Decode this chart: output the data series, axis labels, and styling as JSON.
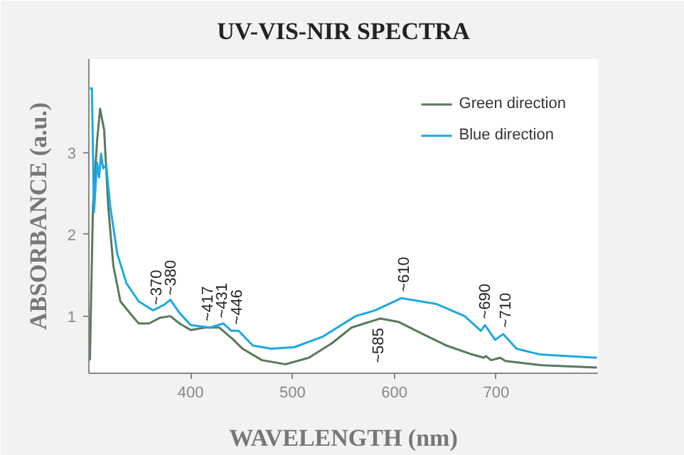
{
  "chart_data": {
    "type": "line",
    "title": "UV-VIS-NIR SPECTRA",
    "xlabel": "WAVELENGTH (nm)",
    "ylabel": "ABSORBANCE (a.u.)",
    "xlim": [
      300,
      800
    ],
    "ylim": [
      0.3,
      4.15
    ],
    "xticks": [
      400,
      500,
      600,
      700
    ],
    "yticks": [
      1,
      2,
      3
    ],
    "grid": false,
    "legend": "top right",
    "series": [
      {
        "name": "Green direction",
        "color": "#587a5a",
        "x": [
          301,
          304,
          308,
          311,
          315,
          319,
          324,
          331,
          340,
          349,
          359,
          370,
          380,
          389,
          400,
          414,
          428,
          442,
          451,
          470,
          493,
          516,
          539,
          558,
          586,
          604,
          628,
          651,
          674,
          688,
          690,
          695,
          704,
          709,
          743,
          799
        ],
        "values": [
          0.46,
          2.34,
          3.14,
          3.54,
          3.28,
          2.34,
          1.62,
          1.18,
          1.04,
          0.91,
          0.91,
          0.98,
          1.0,
          0.91,
          0.83,
          0.86,
          0.86,
          0.71,
          0.6,
          0.46,
          0.41,
          0.49,
          0.67,
          0.86,
          0.97,
          0.93,
          0.78,
          0.64,
          0.54,
          0.49,
          0.51,
          0.46,
          0.49,
          0.45,
          0.4,
          0.37
        ]
      },
      {
        "name": "Blue direction",
        "color": "#1ca8e4",
        "x": [
          301,
          303,
          305,
          308,
          310,
          312,
          314,
          317,
          321,
          328,
          337,
          349,
          363,
          374,
          380,
          389,
          400,
          419,
          432,
          440,
          447,
          461,
          479,
          502,
          530,
          562,
          581,
          607,
          641,
          669,
          685,
          689,
          699,
          707,
          720,
          743,
          799
        ],
        "values": [
          3.79,
          3.79,
          2.27,
          2.88,
          2.7,
          2.99,
          2.81,
          2.85,
          2.34,
          1.76,
          1.4,
          1.18,
          1.07,
          1.14,
          1.2,
          1.04,
          0.89,
          0.86,
          0.91,
          0.82,
          0.82,
          0.64,
          0.6,
          0.62,
          0.75,
          1.0,
          1.07,
          1.22,
          1.15,
          1.0,
          0.82,
          0.89,
          0.71,
          0.78,
          0.6,
          0.53,
          0.49
        ]
      }
    ],
    "annotations": [
      {
        "text": "~370",
        "x": 367,
        "y": 1.1
      },
      {
        "text": "~380",
        "x": 381,
        "y": 1.22
      },
      {
        "text": "~417",
        "x": 417,
        "y": 0.9
      },
      {
        "text": "~431",
        "x": 431,
        "y": 0.94
      },
      {
        "text": "~446",
        "x": 446,
        "y": 0.86
      },
      {
        "text": "~585",
        "x": 585,
        "y": 0.96
      },
      {
        "text": "~610",
        "x": 610,
        "y": 1.26
      },
      {
        "text": "~690",
        "x": 690,
        "y": 0.93
      },
      {
        "text": "~710",
        "x": 710,
        "y": 0.82
      }
    ]
  }
}
